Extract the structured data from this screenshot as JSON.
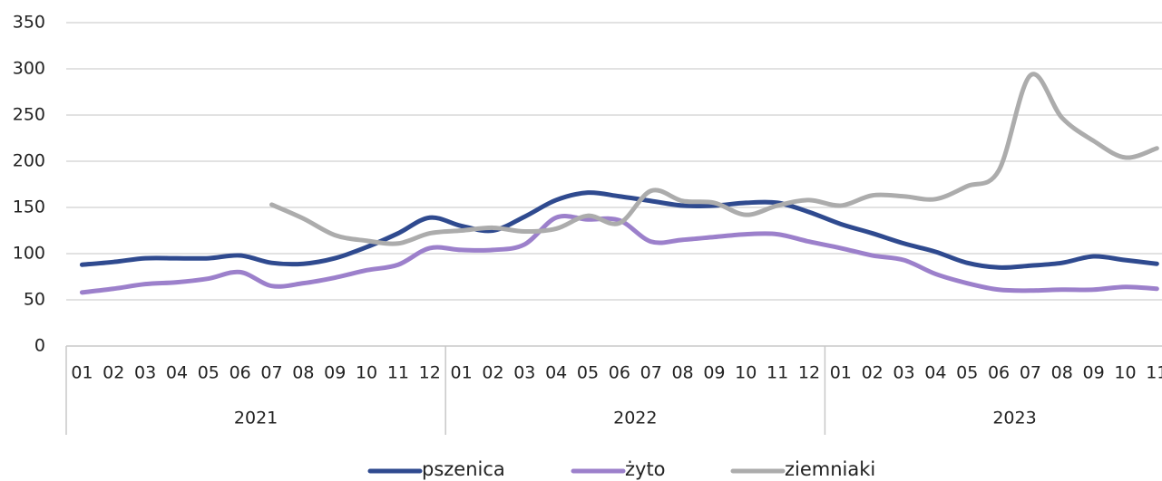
{
  "chart_data": {
    "type": "line",
    "groups": [
      {
        "label": "2021",
        "categories": [
          "01",
          "02",
          "03",
          "04",
          "05",
          "06",
          "07",
          "08",
          "09",
          "10",
          "11",
          "12"
        ]
      },
      {
        "label": "2022",
        "categories": [
          "01",
          "02",
          "03",
          "04",
          "05",
          "06",
          "07",
          "08",
          "09",
          "10",
          "11",
          "12"
        ]
      },
      {
        "label": "2023",
        "categories": [
          "01",
          "02",
          "03",
          "04",
          "05",
          "06",
          "07",
          "08",
          "09",
          "10",
          "11"
        ]
      }
    ],
    "series": [
      {
        "name": "pszenica",
        "color": "#2f4a8f",
        "values": [
          88,
          91,
          95,
          95,
          95,
          98,
          90,
          89,
          95,
          107,
          122,
          139,
          130,
          125,
          140,
          158,
          166,
          162,
          157,
          152,
          152,
          155,
          155,
          145,
          132,
          122,
          111,
          102,
          90,
          85,
          87,
          90,
          97,
          93,
          89
        ]
      },
      {
        "name": "żyto",
        "color": "#9c80cb",
        "values": [
          58,
          62,
          67,
          69,
          73,
          80,
          65,
          68,
          74,
          82,
          88,
          106,
          104,
          104,
          110,
          139,
          137,
          136,
          113,
          115,
          118,
          121,
          121,
          113,
          106,
          98,
          93,
          78,
          68,
          61,
          60,
          61,
          61,
          64,
          62
        ]
      },
      {
        "name": "ziemniaki",
        "color": "#acacac",
        "values": [
          null,
          null,
          null,
          null,
          null,
          null,
          153,
          138,
          120,
          114,
          111,
          122,
          125,
          128,
          124,
          127,
          141,
          133,
          168,
          157,
          155,
          142,
          152,
          158,
          152,
          163,
          162,
          159,
          173,
          190,
          293,
          247,
          222,
          204,
          214
        ]
      }
    ],
    "ylim": [
      0,
      350
    ],
    "yticks": [
      0,
      50,
      100,
      150,
      200,
      250,
      300,
      350
    ],
    "grid": true,
    "legend": "bottom"
  }
}
